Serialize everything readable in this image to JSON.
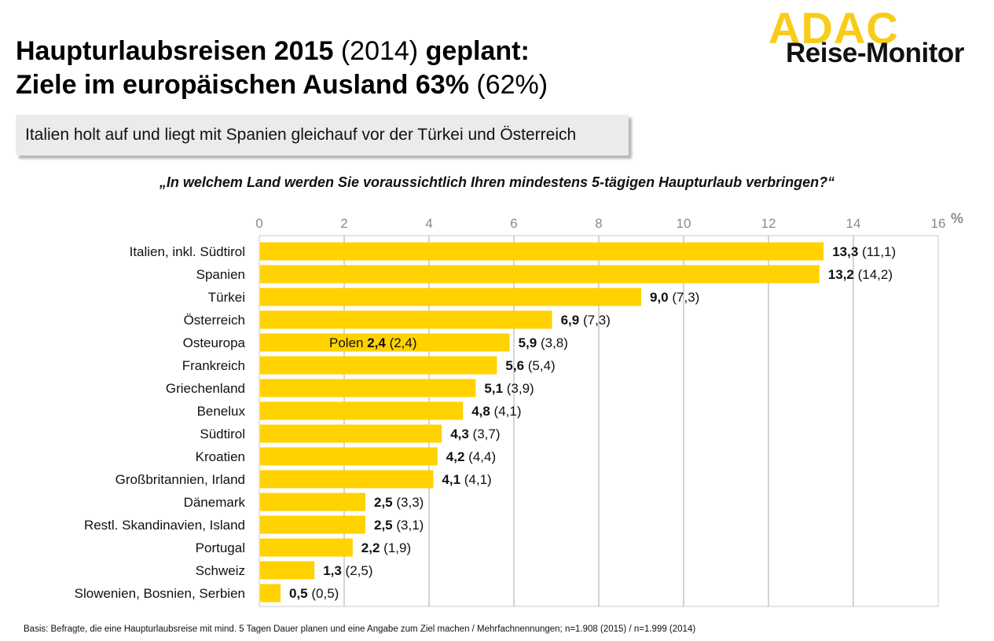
{
  "header": {
    "title_line1_bold": "Haupturlaubsreisen 2015",
    "title_line1_prev": "(2014)",
    "title_line1_end": "geplant:",
    "title_line2_bold": "Ziele im europäischen Ausland 63%",
    "title_line2_prev": "(62%)"
  },
  "logo": {
    "brand": "ADAC",
    "product": "Reise-Monitor"
  },
  "subtitle": "Italien holt auf und liegt mit Spanien gleichauf vor der Türkei und Österreich",
  "question": "„In welchem Land werden Sie voraussichtlich Ihren mindestens 5-tägigen Haupturlaub verbringen?“",
  "footnote": "Basis: Befragte, die eine Haupturlaubsreise mit mind. 5 Tagen Dauer planen und eine Angabe zum Ziel machen / Mehrfachnennungen; n=1.908 (2015) / n=1.999 (2014)",
  "chart_data": {
    "type": "bar",
    "orientation": "horizontal",
    "xlim": [
      0,
      16
    ],
    "xticks": [
      "0",
      "2",
      "4",
      "6",
      "8",
      "10",
      "12",
      "14",
      "16"
    ],
    "unit": "%",
    "grid": true,
    "bar_color": "#ffd200",
    "categories": [
      "Italien, inkl. Südtirol",
      "Spanien",
      "Türkei",
      "Österreich",
      "Osteuropa",
      "Frankreich",
      "Griechenland",
      "Benelux",
      "Südtirol",
      "Kroatien",
      "Großbritannien, Irland",
      "Dänemark",
      "Restl. Skandinavien, Island",
      "Portugal",
      "Schweiz",
      "Slowenien, Bosnien, Serbien"
    ],
    "series": [
      {
        "name": "2015",
        "values": [
          13.3,
          13.2,
          9.0,
          6.9,
          5.9,
          5.6,
          5.1,
          4.8,
          4.3,
          4.2,
          4.1,
          2.5,
          2.5,
          2.2,
          1.3,
          0.5
        ]
      },
      {
        "name": "2014",
        "values": [
          11.1,
          14.2,
          7.3,
          7.3,
          3.8,
          5.4,
          3.9,
          4.1,
          3.7,
          4.4,
          4.1,
          3.3,
          3.1,
          1.9,
          2.5,
          0.5
        ]
      }
    ],
    "value_labels": [
      "13,3",
      "13,2",
      "9,0",
      "6,9",
      "5,9",
      "5,6",
      "5,1",
      "4,8",
      "4,3",
      "4,2",
      "4,1",
      "2,5",
      "2,5",
      "2,2",
      "1,3",
      "0,5"
    ],
    "prev_labels": [
      "(11,1)",
      "(14,2)",
      "(7,3)",
      "(7,3)",
      "(3,8)",
      "(5,4)",
      "(3,9)",
      "(4,1)",
      "(3,7)",
      "(4,4)",
      "(4,1)",
      "(3,3)",
      "(3,1)",
      "(1,9)",
      "(2,5)",
      "(0,5)"
    ],
    "annotations": [
      {
        "category": "Osteuropa",
        "label": "Polen",
        "value_label": "2,4",
        "prev_label": "(2,4)"
      }
    ]
  }
}
